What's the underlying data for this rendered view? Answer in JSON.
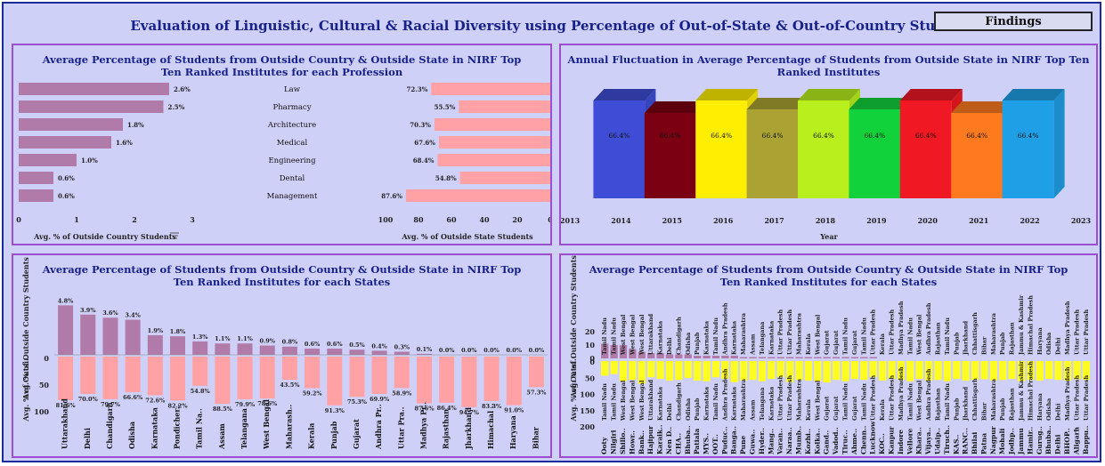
{
  "dashboard": {
    "title": "Evaluation of Linguistic, Cultural & Racial Diversity using Percentage of Out-of-State & Out-of-Country Students",
    "findings_label": "Findings"
  },
  "chart_data": [
    {
      "id": "profession",
      "type": "bar",
      "orientation": "horizontal",
      "title": "Average Percentage of Students from Outside Country & Outside State in NIRF Top Ten Ranked  Institutes for each Profession",
      "categories": [
        "Law",
        "Pharmacy",
        "Architecture",
        "Medical",
        "Engineering",
        "Dental",
        "Management"
      ],
      "series": [
        {
          "name": "Avg. % of Outside Country Students",
          "values": [
            2.6,
            2.5,
            1.8,
            1.6,
            1.0,
            0.6,
            0.6
          ],
          "labels": [
            "2.6%",
            "2.5%",
            "1.8%",
            "1.6%",
            "1.0%",
            "0.6%",
            "0.6%"
          ],
          "color": "#b07ba8",
          "xlim": [
            0,
            3
          ],
          "ticks": [
            "0",
            "1",
            "2",
            "3"
          ]
        },
        {
          "name": "Avg. % of Outside State Students",
          "values": [
            72.3,
            55.5,
            70.3,
            67.6,
            68.4,
            54.8,
            87.6
          ],
          "labels": [
            "72.3%",
            "55.5%",
            "70.3%",
            "67.6%",
            "68.4%",
            "54.8%",
            "87.6%"
          ],
          "color": "#ffa1a5",
          "xlim": [
            100,
            0
          ],
          "ticks": [
            "100",
            "80",
            "60",
            "40",
            "20",
            "0"
          ]
        }
      ]
    },
    {
      "id": "annual",
      "type": "bar",
      "style": "3d",
      "title": "Annual Fluctuation in Average Percentage of Students from Outside State in NIRF Top Ten Ranked  Institutes",
      "xlabel": "Year",
      "x_ticks": [
        "2013",
        "2014",
        "2015",
        "2016",
        "2017",
        "2018",
        "2019",
        "2020",
        "2021",
        "2022",
        "2023"
      ],
      "categories": [
        "2014",
        "2015",
        "2016",
        "2017",
        "2018",
        "2019",
        "2020",
        "2021",
        "2022"
      ],
      "values": [
        66.4,
        66.4,
        66.4,
        66.4,
        66.4,
        66.4,
        66.4,
        66.4,
        66.4
      ],
      "labels": [
        "66.4%",
        "66.4%",
        "66.4%",
        "66.4%",
        "66.4%",
        "66.4%",
        "66.4%",
        "66.4%",
        "66.4%"
      ],
      "colors": [
        "#3f4dd6",
        "#7a0012",
        "#ffee00",
        "#aaa232",
        "#b8ef1c",
        "#12d23c",
        "#f01822",
        "#ff7a1f",
        "#1fa0e6"
      ]
    },
    {
      "id": "states",
      "type": "bar",
      "title": "Average Percentage of Students from Outside Country & Outside State in NIRF Top Ten Ranked  Institutes for each States",
      "categories": [
        "Uttarakhand",
        "Delhi",
        "Chandigarh",
        "Odisha",
        "Karnataka",
        "Pondicher..",
        "Tamil Na..",
        "Assam",
        "Telangana",
        "West Bengal",
        "Maharash..",
        "Kerala",
        "Punjab",
        "Gujarat",
        "Andhra Pradesh",
        "Uttar Pradesh",
        "Madhya Pradesh",
        "Rajasthan",
        "Jharkhand",
        "Himachal Pradesh",
        "Haryana",
        "Bihar"
      ],
      "series": [
        {
          "name": "Avg. % of Outside Country Students",
          "axis_label": "Avg. % of Outside Country Students",
          "values": [
            4.8,
            3.9,
            3.6,
            3.4,
            1.9,
            1.8,
            1.3,
            1.1,
            1.1,
            0.9,
            0.8,
            0.6,
            0.6,
            0.5,
            0.4,
            0.3,
            0.1,
            0.0,
            0.0,
            0.0,
            0.0,
            0.0
          ],
          "labels": [
            "4.8%",
            "3.9%",
            "3.6%",
            "3.4%",
            "1.9%",
            "1.8%",
            "1.3%",
            "1.1%",
            "1.1%",
            "0.9%",
            "0.8%",
            "0.6%",
            "0.6%",
            "0.5%",
            "0.4%",
            "0.3%",
            "0.1%",
            "0.0%",
            "0.0%",
            "0.0%",
            "0.0%",
            "0.0%"
          ],
          "color": "#b07ba8"
        },
        {
          "name": "Avg. % of Outside State Students",
          "axis_label": "Avg. % of Outsi..",
          "values": [
            81.6,
            70.0,
            79.7,
            66.6,
            72.6,
            82.2,
            54.8,
            88.5,
            79.9,
            78.6,
            43.5,
            59.2,
            91.3,
            75.3,
            69.9,
            58.9,
            87.6,
            86.4,
            94.7,
            83.3,
            91.0,
            57.3
          ],
          "labels": [
            "81.6%",
            "70.0%",
            "79.7%",
            "66.6%",
            "72.6%",
            "82.2%",
            "54.8%",
            "88.5%",
            "79.9%",
            "78.6%",
            "43.5%",
            "59.2%",
            "91.3%",
            "75.3%",
            "69.9%",
            "58.9%",
            "87.6%",
            "86.4%",
            "94.7%",
            "83.3%",
            "91.0%",
            "57.3%"
          ],
          "color": "#ffa1a5",
          "ticks": [
            "0",
            "50",
            "100"
          ]
        }
      ]
    },
    {
      "id": "cities",
      "type": "bar",
      "title": "Average Percentage of Students from Outside Country & Outside State in NIRF Top Ten Ranked  Institutes for each States",
      "categories": [
        "Ooty",
        "Nilgiri",
        "Shillo..",
        "Howr..",
        "Bank..",
        "Hajipur",
        "Karaik..",
        "Nen D..",
        "CHA..",
        "Bhuba..",
        "Patiala",
        "MYS..",
        "OOT..",
        "Puduc..",
        "Banga..",
        "Pune",
        "Guwa..",
        "Hyder..",
        "Mang..",
        "Varan..",
        "Naraa..",
        "Mumb..",
        "Kozhi..",
        "Kolka..",
        "Gand..",
        "Vadod..",
        "Tiruc..",
        "Ahme..",
        "Chenn..",
        "Lucknow",
        "KOC..",
        "Kanpur",
        "Indore",
        "Vellore",
        "Khara..",
        "Vijaya..",
        "Udaip..",
        "Tiruch..",
        "KAS..",
        "RANC..",
        "Bhilai",
        "Patna",
        "Nagpur",
        "Mohali",
        "Jodhp..",
        "Jammu",
        "Hamir..",
        "Gurug..",
        "Bhuba..",
        "Delhi",
        "BHOP..",
        "Aligarh",
        "Bappu.."
      ],
      "category_states": [
        "Tamil Nadu",
        "Tamil Nadu",
        "West Bengal",
        "West Bengal",
        "West Bengal",
        "Uttarakhand",
        "Karnataka",
        "Delhi",
        "Chandigarh",
        "Odisha",
        "Punjab",
        "Karnataka",
        "Tamil Nadu",
        "Andhra Pradesh",
        "Karnataka",
        "Maharashtra",
        "Assam",
        "Telangana",
        "Karnataka",
        "Uttar Pradesh",
        "Uttar Pradesh",
        "Maharashtra",
        "Kerala",
        "West Bengal",
        "Gujarat",
        "Gujarat",
        "Tamil Nadu",
        "Gujarat",
        "Tamil Nadu",
        "Uttar Pradesh",
        "Kerala",
        "Uttar Pradesh",
        "Madhya Pradesh",
        "Tamil Nadu",
        "West Bengal",
        "Andhra Pradesh",
        "Rajasthan",
        "Tamil Nadu",
        "Punjab",
        "Jharkhand",
        "Chhattisgarh",
        "Bihar",
        "Maharashtra",
        "Punjab",
        "Rajasthan",
        "Jammu & Kashmir",
        "Himachal Pradesh",
        "Haryana",
        "Odisha",
        "Delhi",
        "Madhya Pradesh",
        "Uttar Pradesh",
        "Uttar Pradesh"
      ],
      "category_states_top": [
        "Tamil Nadu",
        "Tamil Nadu",
        "West Bengal",
        "West Bengal",
        "West Bengal",
        "Uttarakhand",
        "Karnataka",
        "Delhi",
        "Chandigarh",
        "Odisha",
        "Punjab",
        "Karnataka",
        "Tamil Nadu",
        "Andhra Pradesh",
        "Karnataka",
        "Maharashtra",
        "Assam",
        "Telangana",
        "Karnataka",
        "Uttar Pradesh",
        "Uttar Pradesh",
        "Maharashtra",
        "Kerala",
        "West Bengal",
        "Gujarat",
        "Gujarat",
        "Tamil Nadu",
        "Gujarat",
        "Tamil Nadu",
        "Uttar Pradesh",
        "Kerala",
        "Uttar Pradesh",
        "Madhya Pradesh",
        "Tamil Nadu",
        "West Bengal",
        "Andhra Pradesh",
        "Rajasthan",
        "Tamil Nadu",
        "Punjab",
        "Jharkhand",
        "Chhattisgarh",
        "Bihar",
        "Maharashtra",
        "Punjab",
        "Rajasthan",
        "Jammu & Kashmir",
        "Himachal Pradesh",
        "Haryana",
        "Odisha",
        "Delhi",
        "Madhya Pradesh",
        "Uttar Pradesh",
        "Uttar Pradesh"
      ],
      "series": [
        {
          "name": "Avg. % of Outside Country Students",
          "axis_label": "Avg. % of Outside Country Students",
          "values": [
            11,
            10,
            10,
            7,
            5,
            4,
            4,
            3,
            3,
            3,
            2,
            2,
            2,
            2,
            2,
            1,
            1,
            1,
            1,
            1,
            1,
            1,
            1,
            1,
            1,
            1,
            1,
            1,
            1,
            1,
            0,
            0,
            0,
            0,
            0,
            0,
            0,
            0,
            0,
            0,
            0,
            0,
            0,
            0,
            0,
            0,
            0,
            0,
            0,
            0,
            0,
            0,
            0
          ],
          "color": "#b07ba8",
          "ticks": [
            "0",
            "10",
            "20"
          ]
        },
        {
          "name": "Avg. % of Outside State Students",
          "axis_label": "Avg. % of Outsi..",
          "values": [
            45,
            40,
            62,
            58,
            70,
            50,
            55,
            60,
            58,
            52,
            60,
            62,
            50,
            55,
            65,
            60,
            58,
            62,
            55,
            50,
            65,
            58,
            60,
            62,
            66,
            58,
            62,
            55,
            58,
            50,
            60,
            55,
            58,
            62,
            55,
            60,
            58,
            62,
            55,
            60,
            58,
            56,
            60,
            58,
            55,
            62,
            58,
            60,
            55,
            58,
            60,
            56,
            58
          ],
          "color": "#fffc22",
          "ticks": [
            "0",
            "50",
            "100",
            "150",
            "200"
          ]
        }
      ]
    }
  ]
}
